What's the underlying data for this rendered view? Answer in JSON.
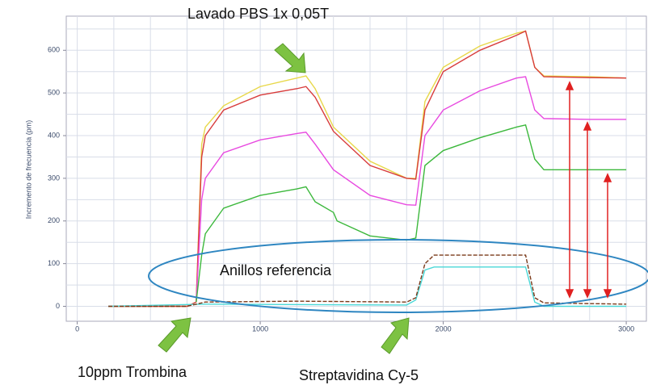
{
  "chart_data": {
    "type": "line",
    "y_label": "Incremento de frecuencia (pm)",
    "xlim": [
      -60,
      3110
    ],
    "ylim": [
      -35,
      680
    ],
    "xticks": [
      0,
      1000,
      2000,
      3000
    ],
    "yticks": [
      0,
      100,
      200,
      300,
      400,
      500,
      600
    ],
    "x_grid": [
      0,
      200,
      400,
      600,
      800,
      1000,
      1200,
      1400,
      1600,
      1800,
      2000,
      2200,
      2400,
      2600,
      2800,
      3000
    ],
    "y_grid": [
      0,
      50,
      100,
      150,
      200,
      250,
      300,
      350,
      400,
      450,
      500,
      550,
      600,
      650
    ],
    "grid": true,
    "series": [
      {
        "color": "#e8d84a",
        "dash": false,
        "x": [
          170,
          600,
          650,
          680,
          700,
          800,
          1000,
          1200,
          1250,
          1300,
          1400,
          1600,
          1800,
          1850,
          1900,
          2000,
          2200,
          2400,
          2450,
          2500,
          2550,
          2800,
          3000
        ],
        "values": [
          0,
          0,
          10,
          380,
          420,
          470,
          515,
          535,
          540,
          510,
          420,
          340,
          300,
          300,
          480,
          560,
          610,
          640,
          645,
          560,
          540,
          538,
          535
        ]
      },
      {
        "color": "#d83c3c",
        "dash": false,
        "x": [
          170,
          600,
          650,
          680,
          700,
          800,
          1000,
          1200,
          1250,
          1300,
          1400,
          1600,
          1800,
          1850,
          1900,
          2000,
          2200,
          2400,
          2450,
          2500,
          2550,
          2800,
          3000
        ],
        "values": [
          0,
          0,
          10,
          350,
          400,
          460,
          495,
          510,
          515,
          490,
          410,
          330,
          300,
          298,
          460,
          550,
          600,
          635,
          645,
          560,
          538,
          536,
          535
        ]
      },
      {
        "color": "#e84ae0",
        "dash": false,
        "x": [
          650,
          680,
          700,
          800,
          1000,
          1200,
          1250,
          1300,
          1400,
          1600,
          1800,
          1850,
          1900,
          2000,
          2200,
          2400,
          2450,
          2500,
          2550,
          2800,
          3000
        ],
        "values": [
          10,
          250,
          300,
          360,
          390,
          405,
          408,
          380,
          320,
          260,
          238,
          237,
          400,
          460,
          505,
          535,
          538,
          460,
          440,
          438,
          438
        ]
      },
      {
        "color": "#3cb83c",
        "dash": false,
        "x": [
          650,
          680,
          700,
          800,
          1000,
          1200,
          1250,
          1300,
          1400,
          1420,
          1600,
          1800,
          1850,
          1900,
          2000,
          2200,
          2400,
          2450,
          2500,
          2550,
          2800,
          3000
        ],
        "values": [
          10,
          120,
          170,
          230,
          260,
          275,
          280,
          245,
          220,
          200,
          165,
          155,
          160,
          330,
          365,
          395,
          420,
          425,
          345,
          320,
          320,
          320
        ]
      },
      {
        "color": "#4ad8d8",
        "dash": false,
        "x": [
          170,
          700,
          1800,
          1850,
          1900,
          1950,
          2450,
          2500,
          2550,
          3000
        ],
        "values": [
          0,
          5,
          3,
          15,
          85,
          92,
          92,
          10,
          0,
          0
        ]
      },
      {
        "color": "#7a3a1a",
        "dash": true,
        "x": [
          170,
          600,
          700,
          1200,
          1800,
          1850,
          1900,
          1950,
          2450,
          2500,
          2550,
          3000
        ],
        "values": [
          0,
          0,
          10,
          12,
          10,
          20,
          100,
          120,
          120,
          20,
          8,
          5
        ]
      }
    ],
    "annotations": [
      "Lavado PBS 1x 0,05T",
      "Anillos referencia",
      "10ppm Trombina",
      "Streptavidina Cy-5"
    ]
  }
}
